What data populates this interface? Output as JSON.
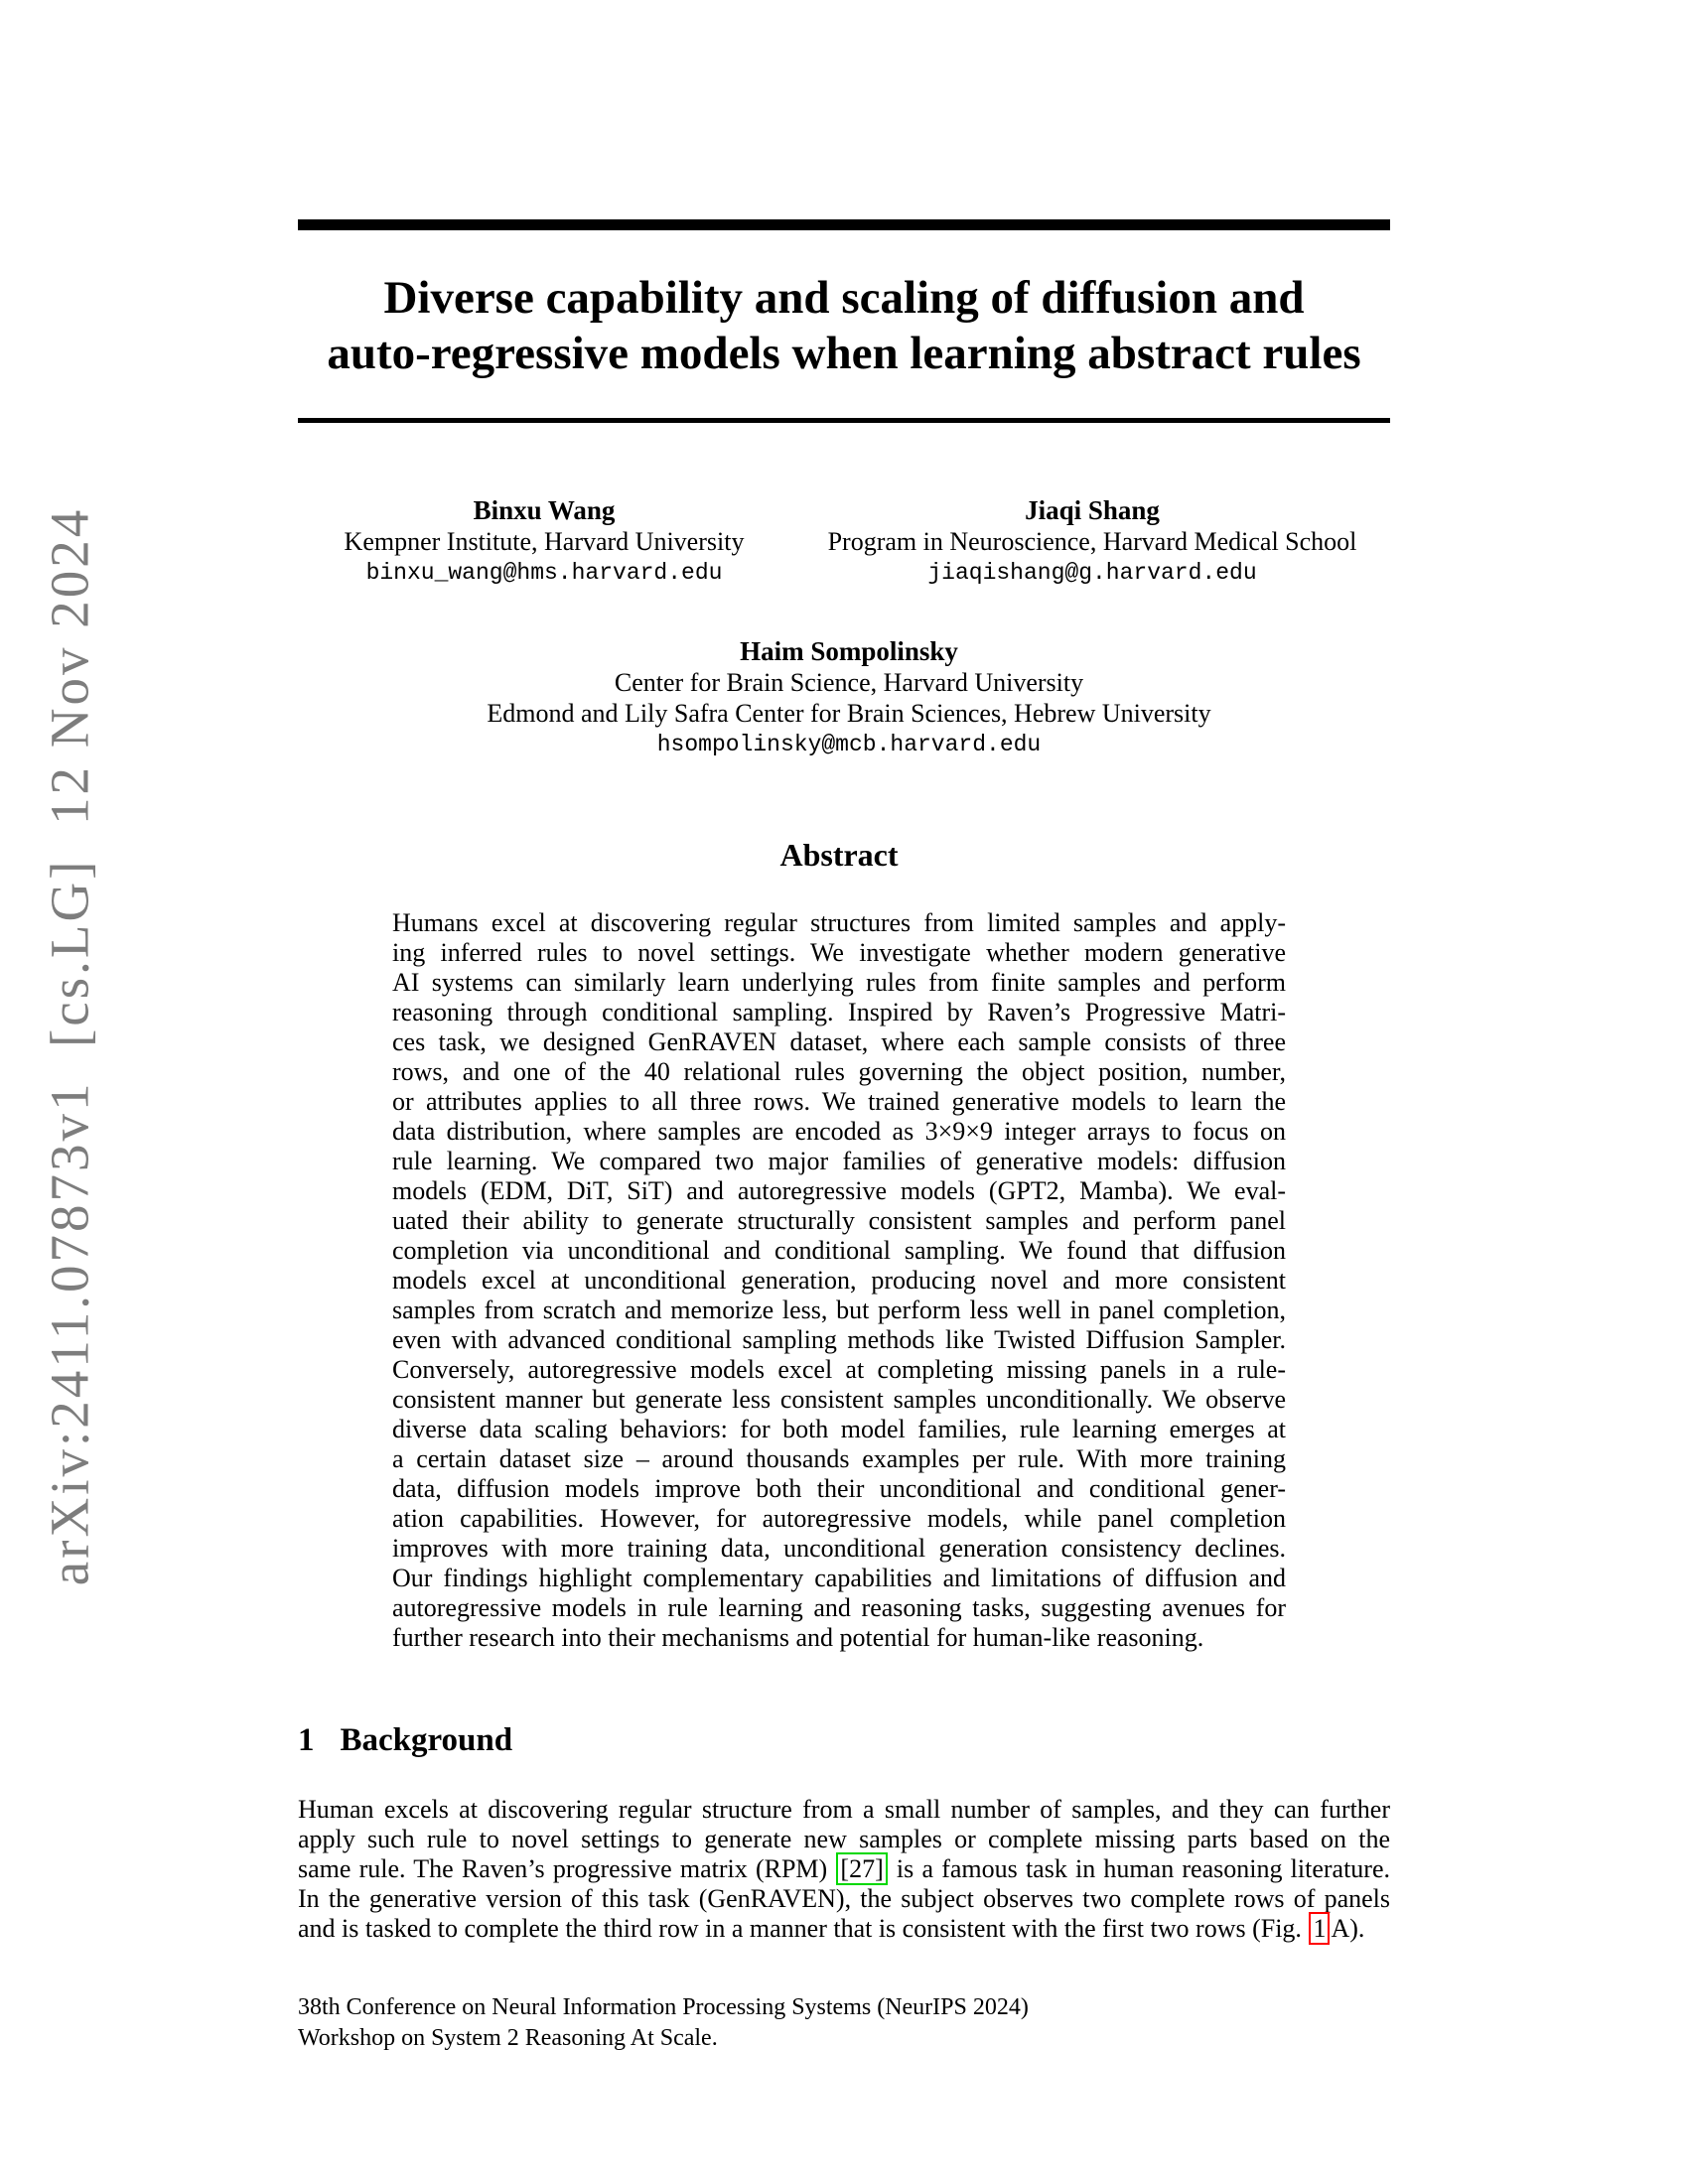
{
  "sidebar": {
    "arxiv_stamp": "arXiv:2411.07873v1  [cs.LG]  12 Nov 2024"
  },
  "title": {
    "line1": "Diverse capability and scaling of diffusion and",
    "line2": "auto-regressive models when learning abstract rules"
  },
  "authors": [
    {
      "name": "Binxu Wang",
      "affiliation1": "Kempner Institute, Harvard University",
      "email": "binxu_wang@hms.harvard.edu"
    },
    {
      "name": "Jiaqi Shang",
      "affiliation1": "Program in Neuroscience, Harvard Medical School",
      "email": "jiaqishang@g.harvard.edu"
    },
    {
      "name": "Haim Sompolinsky",
      "affiliation1": "Center for Brain Science, Harvard University",
      "affiliation2": "Edmond and Lily Safra Center for Brain Sciences, Hebrew University",
      "email": "hsompolinsky@mcb.harvard.edu"
    }
  ],
  "abstract": {
    "heading": "Abstract",
    "lines": [
      "Humans excel at discovering regular structures from limited samples and apply-",
      "ing inferred rules to novel settings. We investigate whether modern generative",
      "AI systems can similarly learn underlying rules from finite samples and perform",
      "reasoning through conditional sampling. Inspired by Raven’s Progressive Matri-",
      "ces task, we designed GenRAVEN dataset, where each sample consists of three",
      "rows, and one of the 40 relational rules governing the object position, number,",
      "or attributes applies to all three rows. We trained generative models to learn the",
      "data distribution, where samples are encoded as 3×9×9 integer arrays to focus on",
      "rule learning. We compared two major families of generative models: diffusion",
      "models (EDM, DiT, SiT) and autoregressive models (GPT2, Mamba). We eval-",
      "uated their ability to generate structurally consistent samples and perform panel",
      "completion via unconditional and conditional sampling. We found that diffusion",
      "models excel at unconditional generation, producing novel and more consistent",
      "samples from scratch and memorize less, but perform less well in panel completion,",
      "even with advanced conditional sampling methods like Twisted Diffusion Sampler.",
      "Conversely, autoregressive models excel at completing missing panels in a rule-",
      "consistent manner but generate less consistent samples unconditionally. We observe",
      "diverse data scaling behaviors: for both model families, rule learning emerges at",
      "a certain dataset size – around thousands examples per rule. With more training",
      "data, diffusion models improve both their unconditional and conditional gener-",
      "ation capabilities. However, for autoregressive models, while panel completion",
      "improves with more training data, unconditional generation consistency declines.",
      "Our findings highlight complementary capabilities and limitations of diffusion and",
      "autoregressive models in rule learning and reasoning tasks, suggesting avenues for",
      "further research into their mechanisms and potential for human-like reasoning."
    ]
  },
  "section": {
    "number": "1",
    "title": "Background"
  },
  "background": {
    "lines": [
      [
        "Human excels at discovering regular structure from a small number of samples, and they can further"
      ],
      [
        "apply such rule to novel settings to generate new samples or complete missing parts based on the"
      ],
      [
        "same rule. The Raven’s progressive matrix (RPM) ",
        {
          "t": "[27]",
          "box": "citation",
          "name": "citation-link-27"
        },
        " is a famous task in human reasoning literature."
      ],
      [
        "In the generative version of this task (GenRAVEN), the subject observes two complete rows of panels"
      ],
      [
        "and is tasked to complete the third row in a manner that is consistent with the first two rows (Fig. ",
        {
          "t": "1",
          "box": "figref",
          "name": "figure-ref-link-1"
        },
        "A)."
      ]
    ]
  },
  "footer": {
    "line1": "38th Conference on Neural Information Processing Systems (NeurIPS 2024)",
    "line2": "Workshop on System 2 Reasoning At Scale."
  },
  "colors": {
    "citation": "#00d800",
    "figref": "#ff0000",
    "stamp_gray": "#7d7d7d"
  }
}
